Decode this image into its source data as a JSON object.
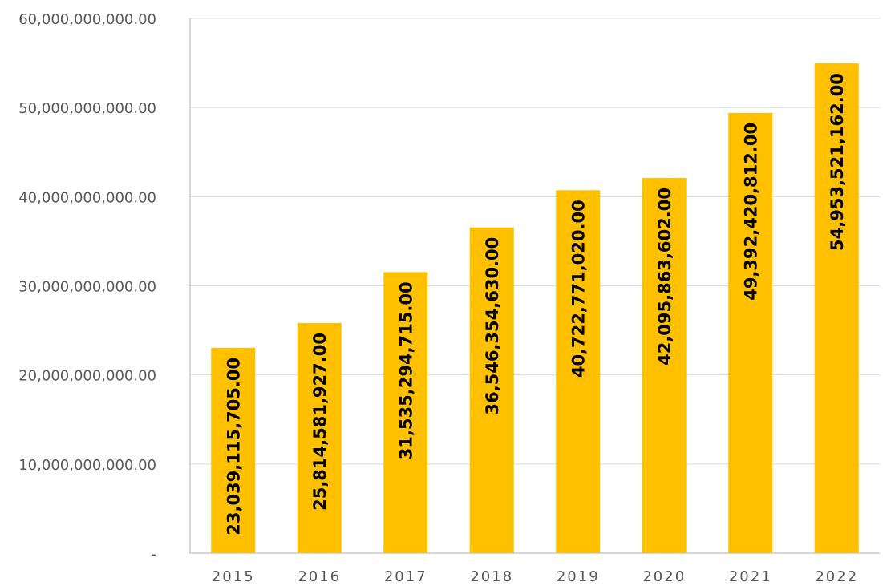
{
  "chart_data": {
    "type": "bar",
    "categories": [
      "2015",
      "2016",
      "2017",
      "2018",
      "2019",
      "2020",
      "2021",
      "2022"
    ],
    "values": [
      23039115705,
      25814581927,
      31535294715,
      36546354630,
      40722771020,
      42095863602,
      49392420812,
      54953521162
    ],
    "data_labels": [
      "23,039,115,705.00",
      "25,814,581,927.00",
      "31,535,294,715.00",
      "36,546,354,630.00",
      "40,722,771,020.00",
      "42,095,863,602.00",
      "49,392,420,812.00",
      "54,953,521,162.00"
    ],
    "ylim": [
      0,
      60000000000
    ],
    "y_ticks": [
      0,
      10000000000,
      20000000000,
      30000000000,
      40000000000,
      50000000000,
      60000000000
    ],
    "y_tick_labels": [
      "-",
      "10,000,000,000.00",
      "20,000,000,000.00",
      "30,000,000,000.00",
      "40,000,000,000.00",
      "50,000,000,000.00",
      "60,000,000,000.00"
    ],
    "grid": true,
    "bar_color": "#FFC000",
    "legend": "none"
  }
}
